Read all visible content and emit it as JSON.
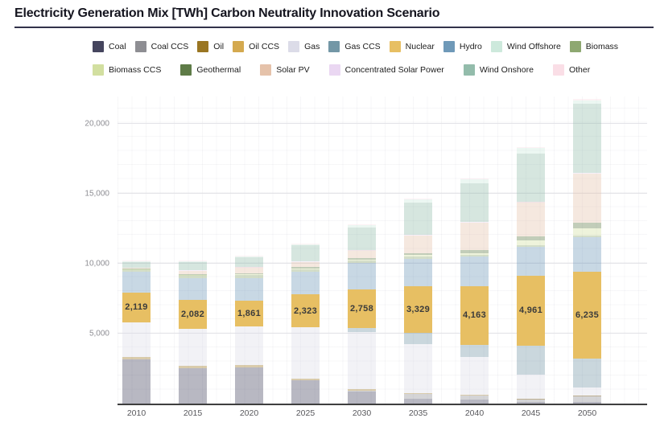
{
  "title": "Electricity Generation Mix [TWh] Carbon Neutrality Innovation Scenario",
  "legend": {
    "rows": [
      [
        "Coal",
        "Coal CCS",
        "Oil",
        "Oil CCS",
        "Gas",
        "Gas CCS",
        "Nuclear",
        "Hydro",
        "Wind Offshore",
        "Biomass"
      ],
      [
        "Biomass CCS",
        "Geothermal",
        "Solar PV",
        "Concentrated Solar Power",
        "Wind Onshore",
        "Other"
      ]
    ]
  },
  "colors": {
    "Coal": "#45455e",
    "Coal CCS": "#8e8e93",
    "Oil": "#9a7622",
    "Oil CCS": "#d4a94f",
    "Gas": "#dcdce8",
    "Gas CCS": "#7397a6",
    "Nuclear": "#e7bf63",
    "Hydro": "#6f99b8",
    "Wind Offshore": "#cde9dc",
    "Biomass": "#8ea871",
    "Biomass CCS": "#d2dfa0",
    "Geothermal": "#5e7b47",
    "Solar PV": "#e5c2aa",
    "Concentrated Solar Power": "#ead7f2",
    "Wind Onshore": "#93bcab",
    "Other": "#fadee6"
  },
  "chart_data": {
    "type": "bar",
    "stacked": true,
    "title": "Electricity Generation Mix [TWh] Carbon Neutrality Innovation Scenario",
    "xlabel": "",
    "ylabel": "",
    "ylim": [
      0,
      21960
    ],
    "grid": true,
    "legend_position": "top",
    "categories": [
      "2010",
      "2015",
      "2020",
      "2025",
      "2030",
      "2035",
      "2040",
      "2045",
      "2050"
    ],
    "yticks": [
      {
        "value": 5000,
        "label": "5,000"
      },
      {
        "value": 10000,
        "label": "10,000"
      },
      {
        "value": 15000,
        "label": "15,000"
      },
      {
        "value": 20000,
        "label": "20,000"
      }
    ],
    "series": [
      {
        "name": "Coal",
        "values": [
          3160,
          2530,
          2590,
          1650,
          860,
          350,
          290,
          120,
          100
        ]
      },
      {
        "name": "Coal CCS",
        "values": [
          0,
          0,
          0,
          0,
          60,
          350,
          300,
          230,
          460
        ]
      },
      {
        "name": "Oil",
        "values": [
          200,
          180,
          170,
          120,
          100,
          50,
          30,
          20,
          10
        ]
      },
      {
        "name": "Oil CCS",
        "values": [
          0,
          0,
          0,
          0,
          0,
          0,
          0,
          0,
          0
        ]
      },
      {
        "name": "Gas",
        "values": [
          2470,
          2640,
          2760,
          3700,
          4100,
          3500,
          2700,
          1700,
          580
        ]
      },
      {
        "name": "Gas CCS",
        "values": [
          0,
          0,
          0,
          0,
          300,
          800,
          900,
          2100,
          2070
        ]
      },
      {
        "name": "Nuclear",
        "values": [
          2119,
          2082,
          1861,
          2323,
          2758,
          3329,
          4163,
          4961,
          6235
        ]
      },
      {
        "name": "Hydro",
        "values": [
          1480,
          1530,
          1610,
          1620,
          1900,
          2000,
          2130,
          2100,
          2470
        ]
      },
      {
        "name": "Biomass",
        "values": [
          180,
          220,
          230,
          200,
          150,
          120,
          120,
          120,
          100
        ]
      },
      {
        "name": "Biomass CCS",
        "values": [
          10,
          20,
          40,
          60,
          60,
          120,
          150,
          330,
          520
        ]
      },
      {
        "name": "Geothermal",
        "values": [
          60,
          70,
          70,
          90,
          100,
          150,
          180,
          260,
          400
        ]
      },
      {
        "name": "Solar PV",
        "values": [
          30,
          240,
          420,
          380,
          600,
          1260,
          2000,
          2470,
          3500
        ]
      },
      {
        "name": "Concentrated Solar Power",
        "values": [
          0,
          10,
          10,
          10,
          20,
          30,
          40,
          50,
          60
        ]
      },
      {
        "name": "Wind Onshore",
        "values": [
          430,
          620,
          700,
          1150,
          1600,
          2300,
          2760,
          3400,
          4950
        ]
      },
      {
        "name": "Wind Offshore",
        "values": [
          30,
          50,
          60,
          100,
          150,
          250,
          290,
          420,
          250
        ]
      },
      {
        "name": "Other",
        "values": [
          50,
          50,
          50,
          50,
          60,
          60,
          60,
          70,
          80
        ]
      }
    ],
    "data_labels": {
      "series": "Nuclear",
      "labels": [
        "2,119",
        "2,082",
        "1,861",
        "2,323",
        "2,758",
        "3,329",
        "4,163",
        "4,961",
        "6,235"
      ]
    }
  }
}
